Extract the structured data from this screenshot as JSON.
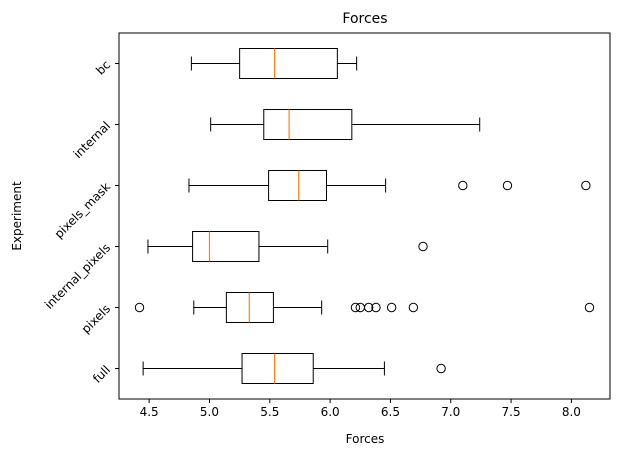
{
  "chart_data": {
    "type": "boxplot",
    "orientation": "horizontal",
    "title": "Forces",
    "xlabel": "Forces",
    "ylabel": "Experiment",
    "xlim": [
      4.25,
      8.32
    ],
    "xticks": [
      4.5,
      5.0,
      5.5,
      6.0,
      6.5,
      7.0,
      7.5,
      8.0
    ],
    "xtick_labels": [
      "4.5",
      "5.0",
      "5.5",
      "6.0",
      "6.5",
      "7.0",
      "7.5",
      "8.0"
    ],
    "categories": [
      "full",
      "pixels",
      "internal_pixels",
      "pixels_mask",
      "internal",
      "bc"
    ],
    "boxes": [
      {
        "name": "full",
        "whislo": 4.45,
        "q1": 5.27,
        "med": 5.54,
        "q3": 5.86,
        "whishi": 6.45,
        "fliers": [
          6.92
        ]
      },
      {
        "name": "pixels",
        "whislo": 4.87,
        "q1": 5.14,
        "med": 5.33,
        "q3": 5.53,
        "whishi": 5.93,
        "fliers": [
          4.42,
          6.21,
          6.25,
          6.32,
          6.38,
          6.51,
          6.69,
          8.15
        ]
      },
      {
        "name": "internal_pixels",
        "whislo": 4.49,
        "q1": 4.86,
        "med": 5.0,
        "q3": 5.41,
        "whishi": 5.98,
        "fliers": [
          6.77
        ]
      },
      {
        "name": "pixels_mask",
        "whislo": 4.83,
        "q1": 5.49,
        "med": 5.74,
        "q3": 5.97,
        "whishi": 6.46,
        "fliers": [
          7.1,
          7.47,
          8.12
        ]
      },
      {
        "name": "internal",
        "whislo": 5.01,
        "q1": 5.45,
        "med": 5.66,
        "q3": 6.18,
        "whishi": 7.24,
        "fliers": []
      },
      {
        "name": "bc",
        "whislo": 4.85,
        "q1": 5.25,
        "med": 5.54,
        "q3": 6.06,
        "whishi": 6.22,
        "fliers": []
      }
    ],
    "colors": {
      "box": "#000000",
      "median": "#ff7f0e",
      "flier": "#000000",
      "background": "#ffffff"
    },
    "grid": false,
    "legend": "none"
  }
}
